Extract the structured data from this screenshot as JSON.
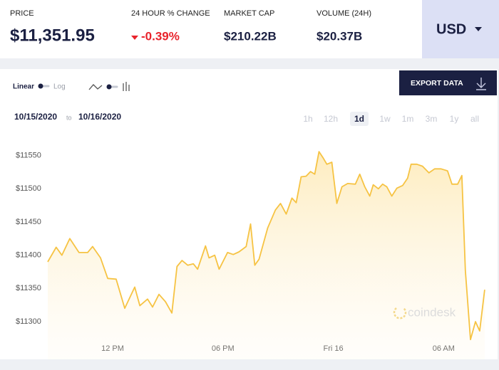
{
  "header": {
    "stats": [
      {
        "label": "PRICE",
        "value": "$11,351.95"
      },
      {
        "label": "24 HOUR % CHANGE",
        "value": "-0.39%"
      },
      {
        "label": "MARKET CAP",
        "value": "$210.22B"
      },
      {
        "label": "VOLUME (24H)",
        "value": "$20.37B"
      }
    ],
    "currency": "USD"
  },
  "controls": {
    "scale_linear": "Linear",
    "scale_log": "Log",
    "export": "EXPORT DATA",
    "date_from": "10/15/2020",
    "date_sep": "to",
    "date_to": "10/16/2020",
    "ranges": [
      "1h",
      "12h",
      "1d",
      "1w",
      "1m",
      "3m",
      "1y",
      "all"
    ],
    "active_range": 2
  },
  "chart_data": {
    "type": "line",
    "color": "#f6c343",
    "area": true,
    "grid": false,
    "watermark": "coindesk",
    "x": [
      8.47,
      8.93,
      9.24,
      9.67,
      10.17,
      10.64,
      10.91,
      11.34,
      11.73,
      12.19,
      12.66,
      13.2,
      13.48,
      13.9,
      14.17,
      14.52,
      14.87,
      15.22,
      15.5,
      15.77,
      16.08,
      16.39,
      16.62,
      17.05,
      17.24,
      17.55,
      17.79,
      18.25,
      18.56,
      18.87,
      19.26,
      19.5,
      19.73,
      19.96,
      20.43,
      20.85,
      21.13,
      21.44,
      21.75,
      21.98,
      22.25,
      22.52,
      22.76,
      22.99,
      23.22,
      23.46,
      23.65,
      23.92,
      24.19,
      24.47,
      24.78,
      25.2,
      25.44,
      25.71,
      25.98,
      26.17,
      26.45,
      26.68,
      26.91,
      27.18,
      27.46,
      27.77,
      28.04,
      28.23,
      28.54,
      28.85,
      29.2,
      29.51,
      29.86,
      30.21,
      30.45,
      30.76,
      30.99,
      31.18,
      31.46,
      31.73,
      31.96,
      32.23
    ],
    "values": [
      11390,
      11412,
      11400,
      11425,
      11404,
      11404,
      11413,
      11396,
      11365,
      11364,
      11320,
      11352,
      11324,
      11334,
      11322,
      11341,
      11330,
      11313,
      11383,
      11392,
      11385,
      11387,
      11379,
      11414,
      11396,
      11400,
      11379,
      11404,
      11401,
      11405,
      11413,
      11447,
      11385,
      11394,
      11441,
      11468,
      11478,
      11462,
      11486,
      11479,
      11518,
      11519,
      11526,
      11522,
      11556,
      11546,
      11537,
      11540,
      11478,
      11503,
      11508,
      11507,
      11522,
      11503,
      11489,
      11506,
      11500,
      11507,
      11503,
      11489,
      11501,
      11505,
      11516,
      11537,
      11537,
      11534,
      11524,
      11530,
      11530,
      11527,
      11507,
      11507,
      11520,
      11377,
      11273,
      11300,
      11286,
      11348
    ],
    "xlim": [
      8.2,
      32.7
    ],
    "ylim": [
      11270,
      11570
    ],
    "xticks": [
      {
        "value": 12,
        "label": "12 PM"
      },
      {
        "value": 18,
        "label": "06 PM"
      },
      {
        "value": 24,
        "label": "Fri 16"
      },
      {
        "value": 30,
        "label": "06 AM"
      }
    ],
    "yticks": [
      {
        "value": 11300,
        "label": "$11300"
      },
      {
        "value": 11350,
        "label": "$11350"
      },
      {
        "value": 11400,
        "label": "$11400"
      },
      {
        "value": 11450,
        "label": "$11450"
      },
      {
        "value": 11500,
        "label": "$11500"
      },
      {
        "value": 11550,
        "label": "$11550"
      }
    ]
  }
}
